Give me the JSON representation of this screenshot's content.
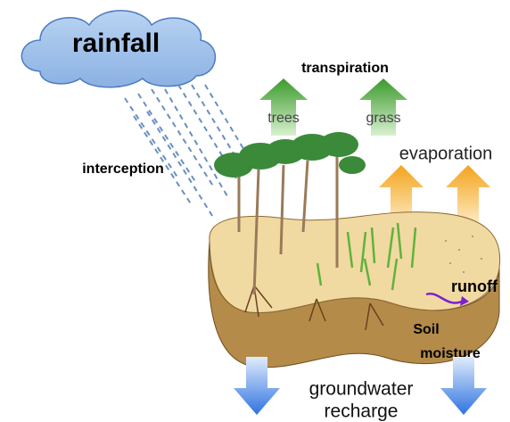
{
  "labels": {
    "rainfall": "rainfall",
    "transpiration": "transpiration",
    "trees": "trees",
    "grass": "grass",
    "evaporation": "evaporation",
    "interception": "interception",
    "runoff": "runoff",
    "soil_moisture": [
      "Soil",
      "moisture"
    ],
    "groundwater_recharge": [
      "groundwater",
      "recharge"
    ]
  }
}
